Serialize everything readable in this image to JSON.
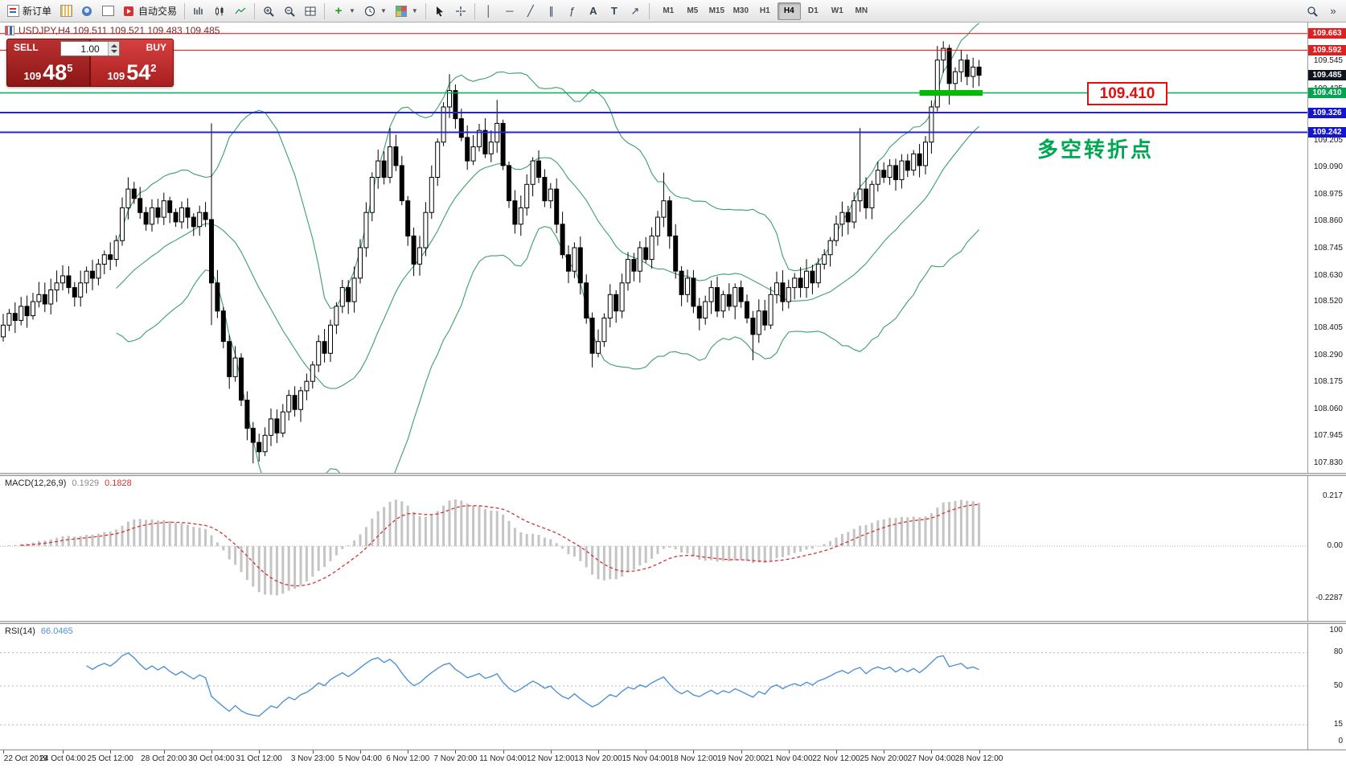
{
  "toolbar": {
    "new_order_label": "新订单",
    "autotrading_label": "自动交易",
    "timeframes": [
      "M1",
      "M5",
      "M15",
      "M30",
      "H1",
      "H4",
      "D1",
      "W1",
      "MN"
    ],
    "active_timeframe": "H4"
  },
  "icons": {
    "new-order-icon": "document-with-red-blue-lines",
    "new-chart-icon": "yellow-bar-page",
    "profiles-icon": "blue-person",
    "market-watch-icon": "grid",
    "autotrading-icon": "red-play-square",
    "bar-chart-icon": "ohlc-bars",
    "candlestick-icon": "two-candles",
    "line-chart-icon": "green-zigzag",
    "zoom-in-icon": "magnifier-plus",
    "zoom-out-icon": "magnifier-minus",
    "tile-windows-icon": "window-quadrants",
    "indicators-icon": "green-plus",
    "periods-icon": "clock",
    "templates-icon": "color-palette",
    "cursor-icon": "arrow-pointer",
    "crosshair-icon": "crosshair",
    "vertical-line-icon": "│",
    "horizontal-line-icon": "─",
    "trendline-icon": "╱",
    "channel-icon": "∥",
    "fibonacci-icon": "ƒ",
    "text-icon": "A",
    "label-icon": "T",
    "arrow-object-icon": "↗",
    "search-icon": "magnifier",
    "toolbar-overflow-icon": "»"
  },
  "symbol_header": "USDJPY,H4  109.511 109.521 109.483 109.485",
  "one_click": {
    "sell_label": "SELL",
    "buy_label": "BUY",
    "volume": "1.00",
    "sell_price_prefix": "109",
    "sell_price_big": "48",
    "sell_price_sup": "5",
    "buy_price_prefix": "109",
    "buy_price_big": "54",
    "buy_price_sup": "2"
  },
  "annotation": "多空转折点",
  "price_flag": "109.410",
  "chart_data": {
    "type": "candlestick",
    "symbol": "USDJPY",
    "timeframe": "H4",
    "title": "USDJPY,H4",
    "ohlc_current": {
      "open": 109.511,
      "high": 109.521,
      "low": 109.483,
      "close": 109.485
    },
    "closes": [
      108.42,
      108.47,
      108.44,
      108.5,
      108.46,
      108.52,
      108.55,
      108.51,
      108.57,
      108.6,
      108.63,
      108.58,
      108.54,
      108.6,
      108.65,
      108.62,
      108.68,
      108.72,
      108.7,
      108.78,
      108.92,
      109.0,
      108.96,
      108.9,
      108.85,
      108.92,
      108.88,
      108.95,
      108.9,
      108.86,
      108.92,
      108.88,
      108.84,
      108.9,
      108.87,
      108.6,
      108.48,
      108.35,
      108.2,
      108.28,
      108.1,
      107.98,
      107.92,
      107.88,
      107.95,
      108.02,
      107.96,
      108.05,
      108.12,
      108.06,
      108.14,
      108.18,
      108.25,
      108.35,
      108.3,
      108.42,
      108.5,
      108.58,
      108.52,
      108.62,
      108.75,
      108.9,
      109.05,
      109.12,
      109.05,
      109.18,
      109.1,
      108.95,
      108.8,
      108.68,
      108.75,
      108.9,
      109.05,
      109.2,
      109.35,
      109.42,
      109.3,
      109.22,
      109.12,
      109.18,
      109.25,
      109.15,
      109.2,
      109.28,
      109.1,
      108.95,
      108.85,
      108.92,
      109.02,
      109.12,
      109.05,
      108.95,
      109.0,
      108.85,
      108.72,
      108.65,
      108.75,
      108.6,
      108.45,
      108.3,
      108.35,
      108.45,
      108.55,
      108.48,
      108.6,
      108.7,
      108.65,
      108.75,
      108.7,
      108.8,
      108.88,
      108.95,
      108.8,
      108.65,
      108.55,
      108.62,
      108.5,
      108.45,
      108.52,
      108.58,
      108.48,
      108.55,
      108.5,
      108.58,
      108.52,
      108.45,
      108.38,
      108.48,
      108.42,
      108.55,
      108.6,
      108.52,
      108.58,
      108.62,
      108.58,
      108.65,
      108.6,
      108.68,
      108.72,
      108.78,
      108.85,
      108.9,
      108.86,
      108.95,
      109.0,
      108.92,
      109.02,
      109.08,
      109.05,
      109.1,
      109.04,
      109.12,
      109.08,
      109.15,
      109.1,
      109.2,
      109.35,
      109.55,
      109.6,
      109.45,
      109.5,
      109.55,
      109.48,
      109.52,
      109.485
    ],
    "wick_overrides": {
      "21": {
        "h": 109.05
      },
      "35": {
        "h": 109.28,
        "l": 108.42
      },
      "42": {
        "l": 107.83
      },
      "65": {
        "h": 109.26
      },
      "75": {
        "h": 109.49
      },
      "83": {
        "h": 109.38
      },
      "99": {
        "l": 108.24
      },
      "111": {
        "h": 109.07
      },
      "126": {
        "l": 108.27
      },
      "144": {
        "h": 109.26
      },
      "157": {
        "h": 109.61
      },
      "158": {
        "h": 109.63
      },
      "159": {
        "l": 109.36
      }
    },
    "price_axis": {
      "min": 107.79,
      "max": 109.71,
      "plain_labels": [
        "109.545",
        "109.425",
        "109.205",
        "109.090",
        "108.975",
        "108.860",
        "108.745",
        "108.630",
        "108.520",
        "108.405",
        "108.290",
        "108.175",
        "108.060",
        "107.945",
        "107.830"
      ]
    },
    "price_tags": [
      {
        "text": "109.663",
        "price": 109.663,
        "bg": "#e02020"
      },
      {
        "text": "109.592",
        "price": 109.592,
        "bg": "#e02020"
      },
      {
        "text": "109.485",
        "price": 109.485,
        "bg": "#10141c"
      },
      {
        "text": "109.410",
        "price": 109.41,
        "bg": "#00a550"
      },
      {
        "text": "109.326",
        "price": 109.326,
        "bg": "#1515cf"
      },
      {
        "text": "109.242",
        "price": 109.242,
        "bg": "#1515cf"
      }
    ],
    "hlines": [
      {
        "price": 109.663,
        "color": "#ff0000",
        "width": 1
      },
      {
        "price": 109.592,
        "color": "#ff0000",
        "width": 1
      },
      {
        "price": 109.41,
        "color": "#00b050",
        "width": 1.4
      },
      {
        "price": 109.326,
        "color": "#2222dd",
        "width": 2
      },
      {
        "price": 109.242,
        "color": "#2222dd",
        "width": 2
      }
    ],
    "highlight_segment": {
      "price": 109.41,
      "from_index": 154,
      "to_index": 164.6,
      "color": "#00bb00"
    },
    "time_labels": [
      {
        "label": "22 Oct 2019",
        "index": 0
      },
      {
        "label": "24 Oct 04:00",
        "index": 10
      },
      {
        "label": "25 Oct 12:00",
        "index": 18
      },
      {
        "label": "28 Oct 20:00",
        "index": 27
      },
      {
        "label": "30 Oct 04:00",
        "index": 35
      },
      {
        "label": "31 Oct 12:00",
        "index": 43
      },
      {
        "label": "3 Nov 23:00",
        "index": 52
      },
      {
        "label": "5 Nov 04:00",
        "index": 60
      },
      {
        "label": "6 Nov 12:00",
        "index": 68
      },
      {
        "label": "7 Nov 20:00",
        "index": 76
      },
      {
        "label": "11 Nov 04:00",
        "index": 84
      },
      {
        "label": "12 Nov 12:00",
        "index": 92
      },
      {
        "label": "13 Nov 20:00",
        "index": 100
      },
      {
        "label": "15 Nov 04:00",
        "index": 108
      },
      {
        "label": "18 Nov 12:00",
        "index": 116
      },
      {
        "label": "19 Nov 20:00",
        "index": 124
      },
      {
        "label": "21 Nov 04:00",
        "index": 132
      },
      {
        "label": "22 Nov 12:00",
        "index": 140
      },
      {
        "label": "25 Nov 20:00",
        "index": 148
      },
      {
        "label": "27 Nov 04:00",
        "index": 156
      },
      {
        "label": "28 Nov 12:00",
        "index": 164
      }
    ],
    "indicators": {
      "bollinger": {
        "period": 20,
        "deviation": 2,
        "color": "#3aa06a"
      },
      "macd": {
        "label": "MACD(12,26,9)",
        "value_main": "0.1929",
        "value_signal": "0.1828",
        "scale": [
          "0.217",
          "0.00",
          "-0.2287"
        ],
        "bar_color": "#c4c4c4",
        "signal_color": "#d33333"
      },
      "rsi": {
        "label": "RSI(14)",
        "value": "66.0465",
        "scale": [
          "100",
          "80",
          "50",
          "15",
          "0"
        ],
        "levels": [
          80,
          50,
          15
        ],
        "color": "#4f92d6"
      }
    }
  }
}
